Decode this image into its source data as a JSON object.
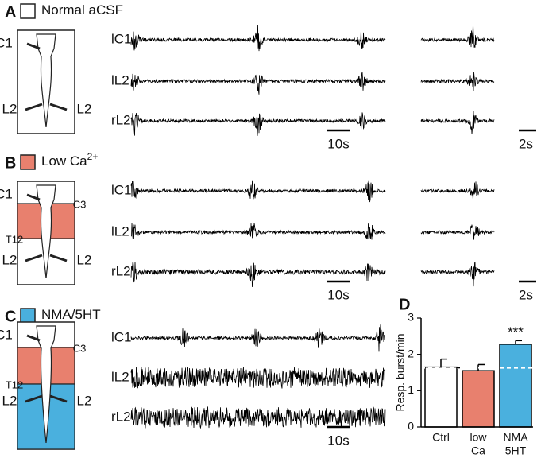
{
  "panels": [
    {
      "letter": "A",
      "condition": "Normal aCSF",
      "cord_labels": [
        "C1",
        "L2",
        "L2"
      ],
      "trace_labels": [
        "lC1",
        "lL2",
        "rL2"
      ],
      "scale_bars": [
        "10s",
        "2s"
      ]
    },
    {
      "letter": "B",
      "condition": "Low Ca",
      "condition_sup": "2+",
      "cord_labels": [
        "C1",
        "L2",
        "L2"
      ],
      "segment_labels": [
        "C3",
        "T12"
      ],
      "trace_labels": [
        "lC1",
        "lL2",
        "rL2"
      ],
      "scale_bars": [
        "10s",
        "2s"
      ]
    },
    {
      "letter": "C",
      "condition": "NMA/5HT",
      "cord_labels": [
        "C1",
        "L2",
        "L2"
      ],
      "segment_labels": [
        "C3",
        "T12"
      ],
      "trace_labels": [
        "lC1",
        "lL2",
        "rL2"
      ],
      "scale_bars": [
        "10s"
      ]
    },
    {
      "letter": "D"
    }
  ],
  "chart_data": {
    "type": "bar",
    "ylabel": "Resp. burst/min",
    "categories": [
      [
        "Ctrl"
      ],
      [
        "low",
        "Ca"
      ],
      [
        "NMA",
        "5HT"
      ]
    ],
    "values": [
      1.65,
      1.55,
      2.28
    ],
    "errors": [
      0.22,
      0.17,
      0.1
    ],
    "colors": [
      "#ffffff",
      "#e8806e",
      "#4ab0de"
    ],
    "ylim": [
      0,
      3
    ],
    "yticks": [
      0,
      1,
      2,
      3
    ],
    "reference_line": 1.63,
    "annotation": "***"
  }
}
